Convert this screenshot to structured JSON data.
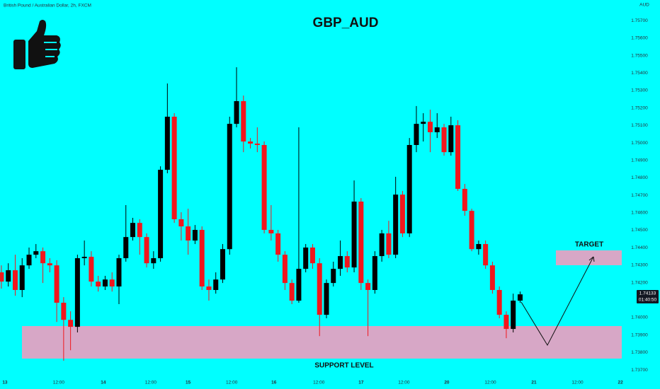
{
  "chart_data": {
    "type": "candlestick",
    "title": "GBP_AUD",
    "subtitle": "British Pound / Australian Dollar, 2h, FXCM",
    "y_axis_label": "AUD",
    "up_color": "#000000",
    "down_color": "#f2161c",
    "background": "#00ffff",
    "grid": false,
    "last_price_label": "1.74133",
    "countdown": "01:40:50",
    "annotations": {
      "target": "TARGET",
      "support": "SUPPORT LEVEL"
    },
    "x": [
      0,
      1,
      2,
      3,
      4,
      5,
      6,
      7,
      8,
      9,
      10,
      11,
      12,
      13,
      14,
      15,
      16,
      17,
      18,
      19,
      20,
      21,
      22,
      23,
      24,
      25,
      26,
      27,
      28,
      29,
      30,
      31,
      32,
      33,
      34,
      35,
      36,
      37,
      38,
      39,
      40,
      41,
      42,
      43,
      44,
      45,
      46,
      47,
      48,
      49,
      50,
      51,
      52,
      53,
      54,
      55,
      56,
      57,
      58,
      59,
      60,
      61,
      62,
      63,
      64,
      65,
      66,
      67,
      68,
      69,
      70,
      71,
      72,
      73,
      74,
      75
    ],
    "open": [
      1.74259,
      1.74206,
      1.74271,
      1.74158,
      1.74299,
      1.7436,
      1.7438,
      1.74311,
      1.74299,
      1.74085,
      1.73987,
      1.73947,
      1.7434,
      1.74348,
      1.74206,
      1.74178,
      1.74218,
      1.74178,
      1.7434,
      1.74461,
      1.74542,
      1.74461,
      1.74311,
      1.7434,
      1.74846,
      1.7515,
      1.74563,
      1.74522,
      1.74441,
      1.74502,
      1.74178,
      1.74158,
      1.74218,
      1.74392,
      1.75109,
      1.75239,
      1.75008,
      1.74996,
      1.74988,
      1.74502,
      1.74482,
      1.7436,
      1.74198,
      1.74097,
      1.74279,
      1.74401,
      1.74311,
      1.74016,
      1.74198,
      1.74279,
      1.74352,
      1.74287,
      1.74664,
      1.74198,
      1.74158,
      1.74352,
      1.74482,
      1.7436,
      1.74704,
      1.74482,
      1.74988,
      1.75109,
      1.75121,
      1.75061,
      1.75089,
      1.74947,
      1.75101,
      1.74737,
      1.74611,
      1.74392,
      1.74421,
      1.74299,
      1.74158,
      1.74016,
      1.73935,
      1.74097
    ],
    "high": [
      1.74299,
      1.74311,
      1.7436,
      1.7434,
      1.74401,
      1.74421,
      1.74401,
      1.7434,
      1.74328,
      1.74117,
      1.74036,
      1.7436,
      1.74441,
      1.7438,
      1.74239,
      1.74239,
      1.74259,
      1.7436,
      1.74644,
      1.74571,
      1.74563,
      1.74482,
      1.7438,
      1.74866,
      1.7534,
      1.7517,
      1.74603,
      1.74623,
      1.7453,
      1.74522,
      1.74218,
      1.74259,
      1.74421,
      1.7515,
      1.75433,
      1.75271,
      1.75028,
      1.75089,
      1.75008,
      1.74644,
      1.74502,
      1.7438,
      1.74218,
      1.75089,
      1.74421,
      1.74421,
      1.7434,
      1.74218,
      1.7432,
      1.74441,
      1.7438,
      1.74785,
      1.74684,
      1.74218,
      1.7438,
      1.74502,
      1.74554,
      1.74806,
      1.74725,
      1.75028,
      1.75211,
      1.7517,
      1.7519,
      1.7517,
      1.75109,
      1.7515,
      1.7513,
      1.74765,
      1.74623,
      1.74441,
      1.74441,
      1.7432,
      1.74178,
      1.74036,
      1.74137,
      1.74149
    ],
    "low": [
      1.74166,
      1.74178,
      1.74125,
      1.74117,
      1.74279,
      1.7434,
      1.74198,
      1.74259,
      1.73975,
      1.73753,
      1.73813,
      1.73915,
      1.74299,
      1.74178,
      1.74149,
      1.74158,
      1.74149,
      1.74077,
      1.7432,
      1.74441,
      1.7436,
      1.74287,
      1.74279,
      1.7432,
      1.74826,
      1.74542,
      1.74441,
      1.7436,
      1.74421,
      1.74158,
      1.74097,
      1.74137,
      1.74198,
      1.7436,
      1.75089,
      1.74947,
      1.74968,
      1.74947,
      1.74482,
      1.74441,
      1.7432,
      1.74158,
      1.74077,
      1.74085,
      1.74259,
      1.74279,
      1.73894,
      1.73996,
      1.74178,
      1.74239,
      1.74259,
      1.74259,
      1.74158,
      1.73894,
      1.74137,
      1.7432,
      1.7434,
      1.7434,
      1.74461,
      1.74461,
      1.74947,
      1.75008,
      1.74947,
      1.75028,
      1.74927,
      1.74927,
      1.74725,
      1.74583,
      1.7438,
      1.7436,
      1.74279,
      1.74137,
      1.73996,
      1.73882,
      1.73915,
      1.74085
    ],
    "close": [
      1.74206,
      1.74271,
      1.74158,
      1.74299,
      1.7436,
      1.7438,
      1.74311,
      1.74299,
      1.74085,
      1.73987,
      1.73947,
      1.7434,
      1.74348,
      1.74206,
      1.74178,
      1.74218,
      1.74178,
      1.7434,
      1.74461,
      1.74542,
      1.74461,
      1.74311,
      1.7434,
      1.74846,
      1.7515,
      1.74563,
      1.74522,
      1.74441,
      1.74502,
      1.74178,
      1.74158,
      1.74218,
      1.74392,
      1.75109,
      1.75239,
      1.75008,
      1.74996,
      1.74988,
      1.74502,
      1.74482,
      1.7436,
      1.74198,
      1.74097,
      1.74279,
      1.74401,
      1.74311,
      1.74016,
      1.74198,
      1.74279,
      1.74352,
      1.74287,
      1.74664,
      1.74198,
      1.74158,
      1.74352,
      1.74482,
      1.7436,
      1.74704,
      1.74482,
      1.74988,
      1.75109,
      1.75121,
      1.75061,
      1.75089,
      1.74947,
      1.75101,
      1.74737,
      1.74611,
      1.74392,
      1.74421,
      1.74299,
      1.74158,
      1.74016,
      1.73935,
      1.74097,
      1.74133
    ],
    "xlim": [
      -0.2,
      89.9
    ],
    "xticks": [
      {
        "value": 0.51,
        "label": "13"
      },
      {
        "value": 8.29,
        "label": "12:00"
      },
      {
        "value": 14.74,
        "label": "14"
      },
      {
        "value": 21.6,
        "label": "12:00"
      },
      {
        "value": 27.0,
        "label": "15"
      },
      {
        "value": 33.3,
        "label": "12:00"
      },
      {
        "value": 39.4,
        "label": "16"
      },
      {
        "value": 45.9,
        "label": "12:00"
      },
      {
        "value": 52.0,
        "label": "17"
      },
      {
        "value": 58.2,
        "label": "12:00"
      },
      {
        "value": 64.4,
        "label": "20"
      },
      {
        "value": 70.7,
        "label": "12:00"
      },
      {
        "value": 77.0,
        "label": "21"
      },
      {
        "value": 83.3,
        "label": "12:00"
      },
      {
        "value": 89.5,
        "label": "22"
      }
    ],
    "ylim": [
      1.7366,
      1.75818
    ],
    "yticks": [
      {
        "value": 1.757,
        "label": "1.75700"
      },
      {
        "value": 1.756,
        "label": "1.75600"
      },
      {
        "value": 1.755,
        "label": "1.75500"
      },
      {
        "value": 1.754,
        "label": "1.75400"
      },
      {
        "value": 1.753,
        "label": "1.75300"
      },
      {
        "value": 1.752,
        "label": "1.75200"
      },
      {
        "value": 1.751,
        "label": "1.75100"
      },
      {
        "value": 1.75,
        "label": "1.75000"
      },
      {
        "value": 1.749,
        "label": "1.74900"
      },
      {
        "value": 1.748,
        "label": "1.74800"
      },
      {
        "value": 1.747,
        "label": "1.74700"
      },
      {
        "value": 1.746,
        "label": "1.74600"
      },
      {
        "value": 1.745,
        "label": "1.74500"
      },
      {
        "value": 1.744,
        "label": "1.74400"
      },
      {
        "value": 1.743,
        "label": "1.74300"
      },
      {
        "value": 1.742,
        "label": "1.74200"
      },
      {
        "value": 1.74,
        "label": "1.74000"
      },
      {
        "value": 1.739,
        "label": "1.73900"
      },
      {
        "value": 1.738,
        "label": "1.73800"
      },
      {
        "value": 1.737,
        "label": "1.73700"
      }
    ]
  }
}
